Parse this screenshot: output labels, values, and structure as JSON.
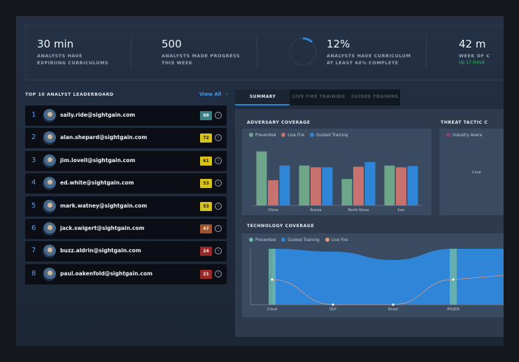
{
  "stats": [
    {
      "value": "30 min",
      "label_lines": [
        "ANALYSTS HAVE",
        "EXPIRIING CURRICULUMS"
      ]
    },
    {
      "value": "500",
      "label_lines": [
        "ANALYSTS MADE PROGRESS",
        "THIS WEEK"
      ]
    },
    {
      "value": "12%",
      "label_lines": [
        "ANALYSTS HAVE CURRICULUM",
        "AT LEAST 60% COMPLETE"
      ],
      "progress": 0.12
    },
    {
      "value": "42 m",
      "label_lines": [
        "WEEK OF C"
      ],
      "sub": "Up 17 minut"
    }
  ],
  "leaderboard": {
    "title": "TOP 10 ANALYST LEADERBOARD",
    "view_all": "View All",
    "rows": [
      {
        "rank": "1",
        "email": "sally.ride@sightgain.com",
        "score": "88",
        "color": "#3a7f86"
      },
      {
        "rank": "2",
        "email": "alan.shepard@sightgain.com",
        "score": "72",
        "color": "#d8c21c"
      },
      {
        "rank": "3",
        "email": "jim.lovell@sightgain.com",
        "score": "61",
        "color": "#d8c21c"
      },
      {
        "rank": "4",
        "email": "ed.white@sightgain.com",
        "score": "53",
        "color": "#d8c21c"
      },
      {
        "rank": "5",
        "email": "mark.watney@sightgain.com",
        "score": "53",
        "color": "#d8c21c"
      },
      {
        "rank": "6",
        "email": "jack.swigert@sightgain.com",
        "score": "47",
        "color": "#a0552e"
      },
      {
        "rank": "7",
        "email": "buzz.aldrin@sightgain.com",
        "score": "24",
        "color": "#9a2a2a"
      },
      {
        "rank": "8",
        "email": "paul.oakenfold@sightgain.com",
        "score": "21",
        "color": "#9a2a2a"
      }
    ]
  },
  "tabs": [
    "SUMMARY",
    "LIVE FIRE TRAINING",
    "GUIDED TRAINING"
  ],
  "adversary": {
    "title": "ADVERSARY COVERAGE",
    "legend": [
      {
        "name": "Prevented",
        "color": "#6fa689"
      },
      {
        "name": "Live Fire",
        "color": "#c87270"
      },
      {
        "name": "Guided Training",
        "color": "#2f86d8"
      }
    ],
    "chart_data": {
      "type": "bar",
      "categories": [
        "China",
        "Russia",
        "North Korea",
        "Iran"
      ],
      "series": [
        {
          "name": "Prevented",
          "values": [
            92,
            68,
            45,
            68
          ]
        },
        {
          "name": "Live Fire",
          "values": [
            43,
            65,
            66,
            65
          ]
        },
        {
          "name": "Guided Training",
          "values": [
            68,
            65,
            74,
            67
          ]
        }
      ],
      "ylim": [
        0,
        100
      ]
    }
  },
  "threat": {
    "title": "THREAT TACTIC C",
    "legend": "Industry Avera",
    "label": "Cove"
  },
  "technology": {
    "title": "TECHNOLOGY COVERAGE",
    "legend": [
      {
        "name": "Prevented",
        "color": "#6fb5a8"
      },
      {
        "name": "Guided Training",
        "color": "#2f86d8"
      },
      {
        "name": "Live Fire",
        "color": "#e59a7c"
      }
    ],
    "chart_data": {
      "type": "area",
      "categories": [
        "Cloud",
        "DLP",
        "Email",
        "IPS/IDS"
      ],
      "series": [
        {
          "name": "Guided Training",
          "values": [
            100,
            95,
            80,
            100
          ]
        },
        {
          "name": "Live Fire",
          "values": [
            45,
            0,
            0,
            45
          ]
        }
      ],
      "ylim": [
        0,
        100
      ]
    }
  }
}
